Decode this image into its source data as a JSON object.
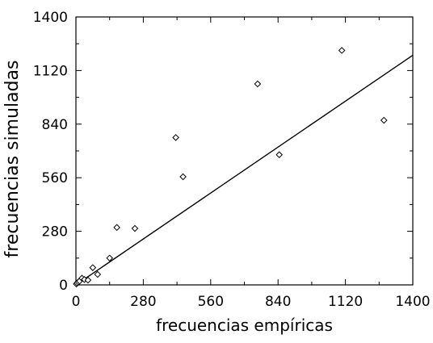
{
  "chart_data": {
    "type": "scatter",
    "xlabel": "frecuencias empíricas",
    "ylabel": "frecuencias simuladas",
    "xlim": [
      0,
      1400
    ],
    "ylim": [
      0,
      1400
    ],
    "x_ticks": [
      "0",
      "280",
      "560",
      "840",
      "1120",
      "1400"
    ],
    "y_ticks": [
      "0",
      "280",
      "560",
      "840",
      "1120",
      "1400"
    ],
    "grid": false,
    "series": [
      {
        "marker": "diamond",
        "points": [
          {
            "x": 2,
            "y": 5
          },
          {
            "x": 5,
            "y": 10
          },
          {
            "x": 10,
            "y": 15
          },
          {
            "x": 15,
            "y": 20
          },
          {
            "x": 25,
            "y": 35
          },
          {
            "x": 35,
            "y": 28
          },
          {
            "x": 50,
            "y": 25
          },
          {
            "x": 70,
            "y": 90
          },
          {
            "x": 90,
            "y": 55
          },
          {
            "x": 140,
            "y": 140
          },
          {
            "x": 170,
            "y": 300
          },
          {
            "x": 245,
            "y": 295
          },
          {
            "x": 415,
            "y": 770
          },
          {
            "x": 445,
            "y": 565
          },
          {
            "x": 755,
            "y": 1050
          },
          {
            "x": 845,
            "y": 680
          },
          {
            "x": 1105,
            "y": 1225
          },
          {
            "x": 1280,
            "y": 860
          }
        ]
      }
    ],
    "fit_line": {
      "x": [
        0,
        1400
      ],
      "y": [
        0,
        1200
      ]
    }
  }
}
